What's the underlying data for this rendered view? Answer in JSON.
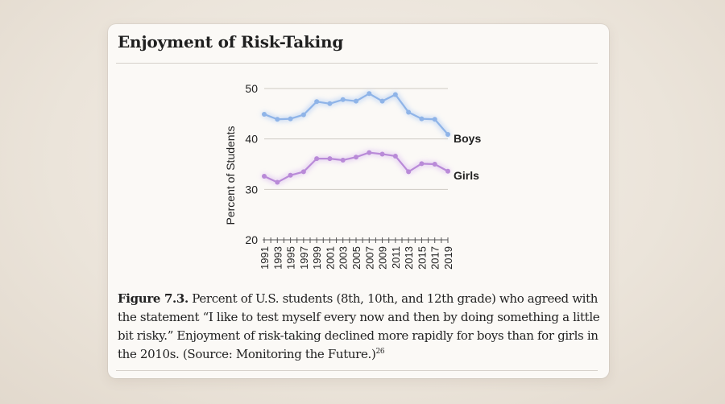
{
  "card": {
    "title": "Enjoyment of Risk-Taking"
  },
  "caption": {
    "figure_label": "Figure 7.3.",
    "text": " Percent of U.S. students (8th, 10th, and 12th grade) who agreed with the statement “I like to test myself every now and then by doing something a little bit risky.” Enjoyment of risk-taking declined more rapidly for boys than for girls in the 2010s. (Source: Monitoring the Future.)",
    "footnote": "26"
  },
  "colors": {
    "boys": "#8fb4e8",
    "boys_glow": "#c4d8f4",
    "girls": "#b98ad8",
    "girls_glow": "#e3cdf2",
    "grid": "#cfcac3",
    "axis": "#555555"
  },
  "chart_data": {
    "type": "line",
    "title": "",
    "xlabel": "",
    "ylabel": "Percent of Students",
    "x": [
      1991,
      1992,
      1993,
      1994,
      1995,
      1996,
      1997,
      1998,
      1999,
      2000,
      2001,
      2002,
      2003,
      2004,
      2005,
      2006,
      2007,
      2008,
      2009,
      2010,
      2011,
      2012,
      2013,
      2014,
      2015,
      2016,
      2017,
      2018,
      2019
    ],
    "x_ticks": [
      "1991",
      "1993",
      "1995",
      "1997",
      "1999",
      "2001",
      "2003",
      "2005",
      "2007",
      "2009",
      "2011",
      "2013",
      "2015",
      "2017",
      "2019"
    ],
    "y_ticks": [
      "20",
      "30",
      "40",
      "50"
    ],
    "ylim": [
      20,
      50
    ],
    "grid": true,
    "series": [
      {
        "name": "Boys",
        "color": "#8fb4e8",
        "points": [
          [
            1991,
            44.9
          ],
          [
            1993,
            43.9
          ],
          [
            1995,
            44.0
          ],
          [
            1997,
            44.8
          ],
          [
            1999,
            47.4
          ],
          [
            2001,
            47.0
          ],
          [
            2003,
            47.8
          ],
          [
            2005,
            47.5
          ],
          [
            2007,
            49.0
          ],
          [
            2009,
            47.5
          ],
          [
            2011,
            48.8
          ],
          [
            2013,
            45.3
          ],
          [
            2015,
            44.0
          ],
          [
            2017,
            43.9
          ],
          [
            2019,
            40.9
          ]
        ]
      },
      {
        "name": "Girls",
        "color": "#b98ad8",
        "points": [
          [
            1991,
            32.6
          ],
          [
            1993,
            31.4
          ],
          [
            1995,
            32.8
          ],
          [
            1997,
            33.5
          ],
          [
            1999,
            36.1
          ],
          [
            2001,
            36.1
          ],
          [
            2003,
            35.8
          ],
          [
            2005,
            36.4
          ],
          [
            2007,
            37.3
          ],
          [
            2009,
            37.0
          ],
          [
            2011,
            36.6
          ],
          [
            2013,
            33.5
          ],
          [
            2015,
            35.1
          ],
          [
            2017,
            35.0
          ],
          [
            2019,
            33.6
          ]
        ]
      }
    ]
  }
}
